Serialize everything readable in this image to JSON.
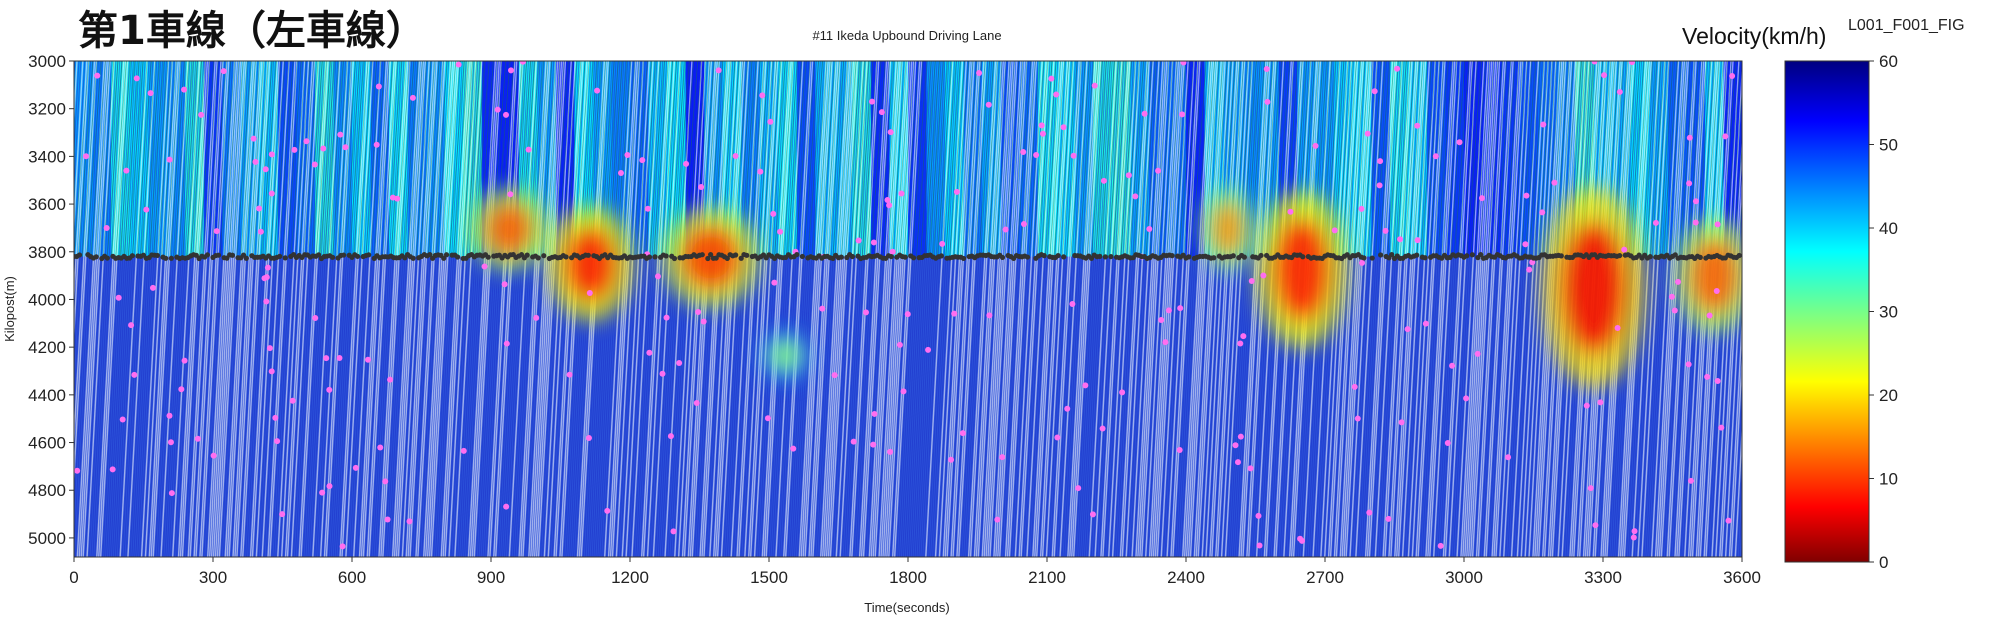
{
  "chart_data": {
    "type": "heatmap",
    "title": "第1車線（左車線）",
    "subtitle": "#11 Ikeda Upbound Driving Lane",
    "figure_id": "L001_F001_FIG",
    "xlabel": "Time(seconds)",
    "ylabel": "Kilopost(m)",
    "xlim": [
      0,
      3600
    ],
    "ylim": [
      3000,
      5080
    ],
    "y_inverted": true,
    "x_ticks": [
      0,
      300,
      600,
      900,
      1200,
      1500,
      1800,
      2100,
      2400,
      2700,
      3000,
      3300,
      3600
    ],
    "y_ticks": [
      3000,
      3200,
      3400,
      3600,
      3800,
      4000,
      4200,
      4400,
      4600,
      4800,
      5000
    ],
    "colorbar": {
      "title": "Velocity(km/h)",
      "range": [
        0,
        60
      ],
      "ticks": [
        0,
        10,
        20,
        30,
        40,
        50,
        60
      ],
      "colormap": "jet"
    },
    "detector_line_kilopost": 3820,
    "congestion_zones": [
      {
        "t_start": 880,
        "t_end": 1000,
        "kp_top": 3560,
        "kp_bottom": 3850,
        "min_speed_kmh": 12
      },
      {
        "t_start": 1050,
        "t_end": 1180,
        "kp_top": 3650,
        "kp_bottom": 4050,
        "min_speed_kmh": 8
      },
      {
        "t_start": 1300,
        "t_end": 1450,
        "kp_top": 3650,
        "kp_bottom": 4000,
        "min_speed_kmh": 10
      },
      {
        "t_start": 1500,
        "t_end": 1570,
        "kp_top": 4150,
        "kp_bottom": 4320,
        "min_speed_kmh": 28
      },
      {
        "t_start": 2450,
        "t_end": 2530,
        "kp_top": 3560,
        "kp_bottom": 3850,
        "min_speed_kmh": 15
      },
      {
        "t_start": 2580,
        "t_end": 2720,
        "kp_top": 3600,
        "kp_bottom": 4150,
        "min_speed_kmh": 8
      },
      {
        "t_start": 3200,
        "t_end": 3360,
        "kp_top": 3600,
        "kp_bottom": 4300,
        "min_speed_kmh": 6
      },
      {
        "t_start": 3480,
        "t_end": 3600,
        "kp_top": 3700,
        "kp_bottom": 4100,
        "min_speed_kmh": 12
      }
    ]
  }
}
